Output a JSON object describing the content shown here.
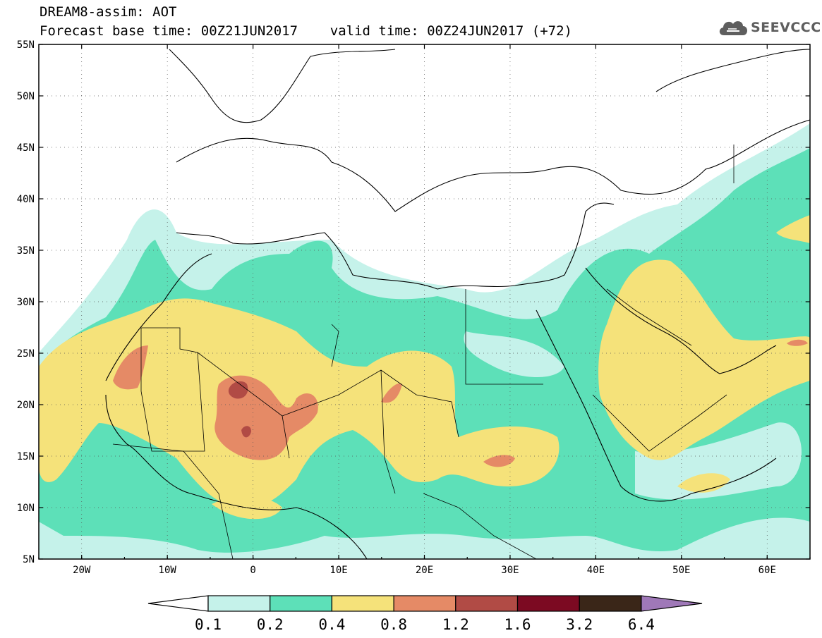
{
  "header": {
    "title_line1": "DREAM8-assim: AOT",
    "title_line2": "Forecast base time: 00Z21JUN2017    valid time: 00Z24JUN2017 (+72)",
    "logo_text": "SEEVCCC"
  },
  "map": {
    "lon_range": [
      -25,
      65
    ],
    "lat_range": [
      5,
      55
    ],
    "lat_labels": [
      "55N",
      "50N",
      "45N",
      "40N",
      "35N",
      "30N",
      "25N",
      "20N",
      "15N",
      "10N",
      "5N"
    ],
    "lon_labels": [
      "20W",
      "10W",
      "0",
      "10E",
      "20E",
      "30E",
      "40E",
      "50E",
      "60E"
    ],
    "colors": {
      "c1": "#c5f2ea",
      "c2": "#5de0b8",
      "c3": "#f5e27a",
      "c4": "#e58a66",
      "c5": "#b14b45",
      "c6": "#7c0a22",
      "c7": "#3a2618",
      "c8": "#9f78b8"
    }
  },
  "colorbar": {
    "labels": [
      "0.1",
      "0.2",
      "0.4",
      "0.8",
      "1.2",
      "1.6",
      "3.2",
      "6.4"
    ],
    "colors": [
      "#ffffff",
      "#c5f2ea",
      "#5de0b8",
      "#f5e27a",
      "#e58a66",
      "#b14b45",
      "#7c0a22",
      "#3a2618",
      "#9f78b8"
    ]
  }
}
